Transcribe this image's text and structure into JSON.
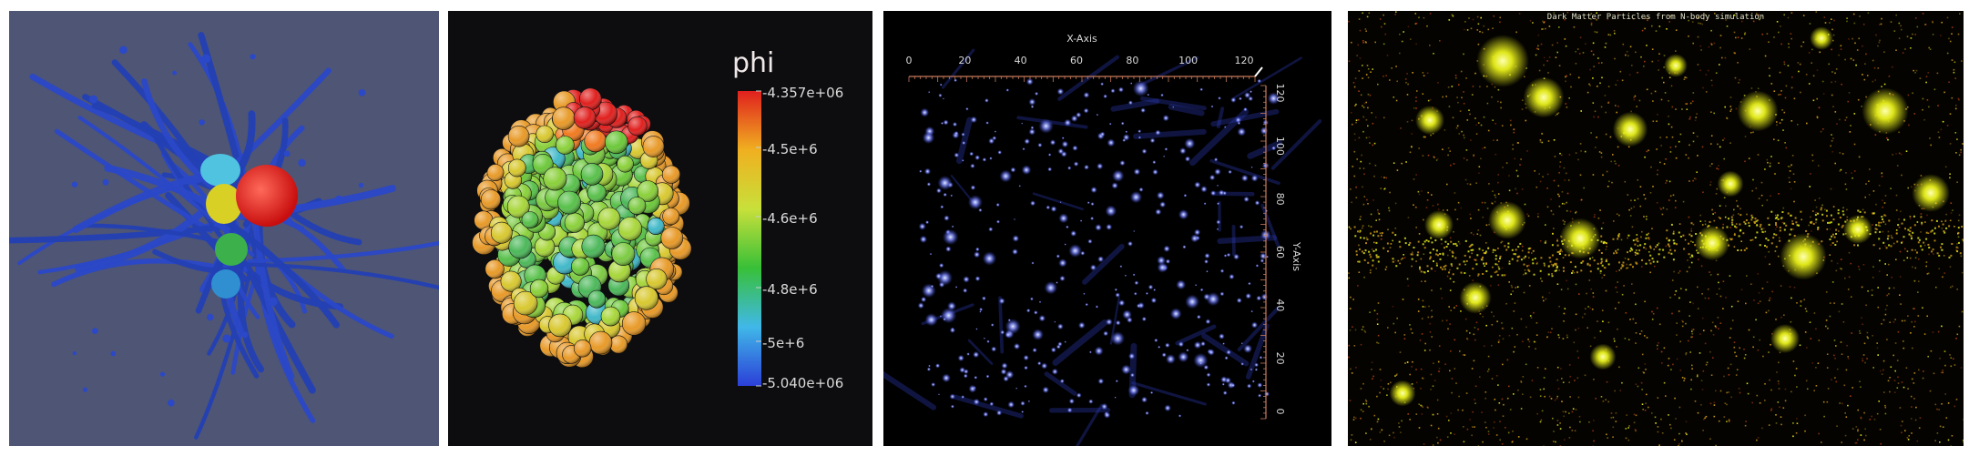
{
  "panels": [
    {
      "id": "particle-tracks"
    },
    {
      "id": "phi-spheres",
      "colorbar": {
        "title": "phi",
        "labels": [
          "-4.357e+06",
          "-4.5e+6",
          "-4.6e+6",
          "-4.8e+6",
          "-5e+6",
          "-5.040e+06"
        ],
        "values": [
          -4357000,
          -4500000,
          -4600000,
          -4800000,
          -5000000,
          -5040000
        ],
        "colors": [
          "#e0201e",
          "#f0b020",
          "#c8e03a",
          "#38c038",
          "#40b8e8",
          "#2b3fd8"
        ]
      }
    },
    {
      "id": "volume-render",
      "x_axis": {
        "label": "X-Axis",
        "ticks": [
          "0",
          "20",
          "40",
          "60",
          "80",
          "100",
          "120"
        ]
      },
      "y_axis": {
        "label": "Y-Axis",
        "ticks": [
          "120",
          "100",
          "80",
          "60",
          "40",
          "20",
          "0"
        ]
      },
      "colors": {
        "axis": "#c87a5a",
        "particles": "#7f8cff"
      }
    },
    {
      "id": "dark-matter",
      "title": "Dark Matter Particles from N-body simulation",
      "colors": {
        "halo": "#eaf21a",
        "dust": "#d4a018",
        "faint": "#b04010"
      }
    }
  ]
}
